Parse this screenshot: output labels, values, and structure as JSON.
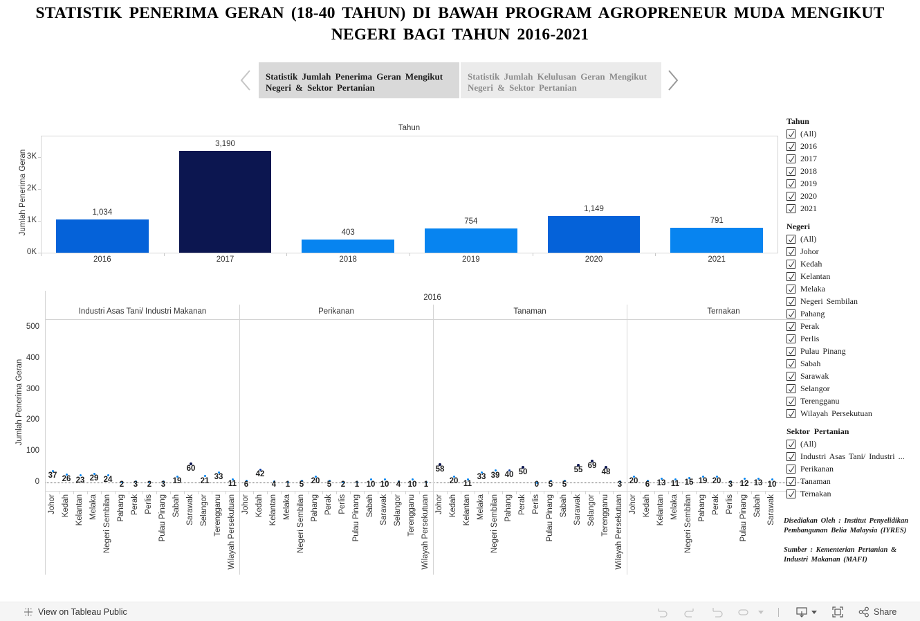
{
  "title": "STATISTIK PENERIMA GERAN (18-40 TAHUN) DI BAWAH PROGRAM AGROPRENEUR MUDA MENGIKUT NEGERI BAGI TAHUN 2016-2021",
  "story_nav": {
    "points": [
      {
        "label": "Statistik Jumlah Penerima Geran Mengikut Negeri & Sektor Pertanian",
        "active": true
      },
      {
        "label": "Statistik Jumlah Kelulusan Geran Mengikut Negeri & Sektor Pertanian",
        "active": false
      }
    ]
  },
  "chart_data": [
    {
      "type": "bar",
      "title": "Tahun",
      "xlabel": "",
      "ylabel": "Jumlah Penerima Geran",
      "categories": [
        "2016",
        "2017",
        "2018",
        "2019",
        "2020",
        "2021"
      ],
      "values": [
        1034,
        3190,
        403,
        754,
        1149,
        791
      ],
      "value_labels": [
        "1,034",
        "3,190",
        "403",
        "754",
        "1,149",
        "791"
      ],
      "bar_colors": [
        "#0562d9",
        "#0c1650",
        "#0784f0",
        "#0784f0",
        "#0562d9",
        "#0784f0"
      ],
      "yticks": [
        "0K",
        "1K",
        "2K",
        "3K"
      ],
      "ylim": [
        0,
        3600
      ],
      "grid": false
    },
    {
      "type": "scatter",
      "title": "2016",
      "ylabel": "Jumlah Penerima Geran",
      "yticks": [
        "0",
        "100",
        "200",
        "300",
        "400",
        "500"
      ],
      "ylim": [
        -30,
        530
      ],
      "panes": [
        {
          "name": "Industri Asas Tani/ Industri Makanan",
          "states": [
            "Johor",
            "Kedah",
            "Kelantan",
            "Melaka",
            "Negeri Sembilan",
            "Pahang",
            "Perak",
            "Perlis",
            "Pulau Pinang",
            "Sabah",
            "Sarawak",
            "Selangor",
            "Terengganu",
            "Wilayah Persekutuan"
          ],
          "values": [
            37,
            26,
            23,
            29,
            24,
            2,
            3,
            2,
            3,
            19,
            60,
            21,
            33,
            11
          ]
        },
        {
          "name": "Perikanan",
          "states": [
            "Johor",
            "Kedah",
            "Kelantan",
            "Melaka",
            "Negeri Sembilan",
            "Pahang",
            "Perak",
            "Perlis",
            "Pulau Pinang",
            "Sabah",
            "Sarawak",
            "Selangor",
            "Terengganu",
            "Wilayah Persekutuan"
          ],
          "values": [
            6,
            42,
            4,
            1,
            5,
            20,
            5,
            2,
            1,
            10,
            10,
            4,
            10,
            1
          ]
        },
        {
          "name": "Tanaman",
          "states": [
            "Johor",
            "Kedah",
            "Kelantan",
            "Melaka",
            "Negeri Sembilan",
            "Pahang",
            "Perak",
            "Perlis",
            "Pulau Pinang",
            "Sabah",
            "Sarawak",
            "Selangor",
            "Terengganu",
            "Wilayah Persekutuan"
          ],
          "values": [
            58,
            20,
            11,
            33,
            39,
            40,
            50,
            0,
            5,
            5,
            55,
            69,
            48,
            3
          ]
        },
        {
          "name": "Ternakan",
          "states": [
            "Johor",
            "Kedah",
            "Kelantan",
            "Melaka",
            "Negeri Sembilan",
            "Pahang",
            "Perak",
            "Perlis",
            "Pulau Pinang",
            "Sabah",
            "Sarawak"
          ],
          "values": [
            20,
            6,
            13,
            11,
            15,
            19,
            20,
            3,
            12,
            13,
            10
          ]
        }
      ]
    }
  ],
  "filters": [
    {
      "title": "Tahun",
      "items": [
        "(All)",
        "2016",
        "2017",
        "2018",
        "2019",
        "2020",
        "2021"
      ]
    },
    {
      "title": "Negeri",
      "items": [
        "(All)",
        "Johor",
        "Kedah",
        "Kelantan",
        "Melaka",
        "Negeri Sembilan",
        "Pahang",
        "Perak",
        "Perlis",
        "Pulau Pinang",
        "Sabah",
        "Sarawak",
        "Selangor",
        "Terengganu",
        "Wilayah Persekutuan"
      ]
    },
    {
      "title": "Sektor Pertanian",
      "items": [
        "(All)",
        "Industri Asas Tani/ Industri ...",
        "Perikanan",
        "Tanaman",
        "Ternakan"
      ]
    }
  ],
  "credits": {
    "prepared_by": "Disediakan Oleh : Institut Penyelidikan Pembangunan Belia Malaysia (IYRES)",
    "source": "Sumber : Kementerian Pertanian & Industri Makanan (MAFI)"
  },
  "toolbar": {
    "view_label": "View on Tableau Public",
    "share_label": "Share"
  }
}
